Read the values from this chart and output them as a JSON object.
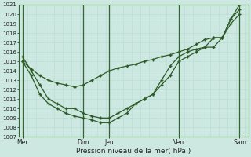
{
  "bg_color": "#cce8e0",
  "grid_color_minor": "#b8ddd5",
  "grid_color_major": "#336633",
  "line_color": "#2d5a27",
  "marker_color": "#2d5a27",
  "xlabel": "Pression niveau de la mer( hPa )",
  "ylim": [
    1007,
    1021
  ],
  "yticks": [
    1007,
    1008,
    1009,
    1010,
    1011,
    1012,
    1013,
    1014,
    1015,
    1016,
    1017,
    1018,
    1019,
    1020,
    1021
  ],
  "x_day_ticks": [
    0,
    3.5,
    5.0,
    9.0,
    12.5
  ],
  "x_day_labels": [
    "Mer",
    "Dim",
    "Jeu",
    "Ven",
    "Sam"
  ],
  "x_vlines": [
    0.0,
    3.5,
    5.0,
    9.0,
    12.5
  ],
  "series1_x": [
    0.0,
    0.5,
    1.0,
    1.5,
    2.0,
    2.5,
    3.0,
    3.5,
    4.0,
    4.5,
    5.0,
    5.5,
    6.0,
    6.5,
    7.0,
    7.5,
    8.0,
    8.5,
    9.0,
    9.5,
    10.0,
    10.5,
    11.0,
    11.5,
    12.0,
    12.5
  ],
  "series1_y": [
    1015.0,
    1014.2,
    1013.5,
    1013.0,
    1012.7,
    1012.5,
    1012.3,
    1012.5,
    1013.0,
    1013.5,
    1014.0,
    1014.3,
    1014.5,
    1014.7,
    1015.0,
    1015.2,
    1015.5,
    1015.7,
    1016.0,
    1016.3,
    1016.8,
    1017.3,
    1017.5,
    1017.5,
    1019.5,
    1021.0
  ],
  "series2_x": [
    0.0,
    0.5,
    1.0,
    1.5,
    2.0,
    2.5,
    3.0,
    3.5,
    4.0,
    4.5,
    5.0,
    5.5,
    6.0,
    6.5,
    7.0,
    7.5,
    8.0,
    8.5,
    9.0,
    9.5,
    10.0,
    10.5,
    11.0,
    11.5,
    12.0,
    12.5
  ],
  "series2_y": [
    1015.5,
    1014.0,
    1012.5,
    1011.0,
    1010.5,
    1010.0,
    1010.0,
    1009.5,
    1009.2,
    1009.0,
    1009.0,
    1009.5,
    1010.0,
    1010.5,
    1011.0,
    1011.5,
    1012.5,
    1013.5,
    1015.0,
    1015.5,
    1016.0,
    1016.5,
    1016.5,
    1017.5,
    1019.5,
    1020.5
  ],
  "series3_x": [
    0.0,
    0.5,
    1.0,
    1.5,
    2.0,
    2.5,
    3.0,
    3.5,
    4.0,
    4.5,
    5.0,
    5.5,
    6.0,
    6.5,
    7.0,
    7.5,
    8.0,
    8.5,
    9.0,
    9.5,
    10.0,
    10.5,
    11.0,
    11.5,
    12.0,
    12.5
  ],
  "series3_y": [
    1015.0,
    1013.5,
    1011.5,
    1010.5,
    1010.0,
    1009.5,
    1009.2,
    1009.0,
    1008.8,
    1008.5,
    1008.5,
    1009.0,
    1009.5,
    1010.5,
    1011.0,
    1011.5,
    1013.0,
    1014.5,
    1015.5,
    1016.0,
    1016.3,
    1016.5,
    1017.5,
    1017.5,
    1019.0,
    1020.0
  ]
}
